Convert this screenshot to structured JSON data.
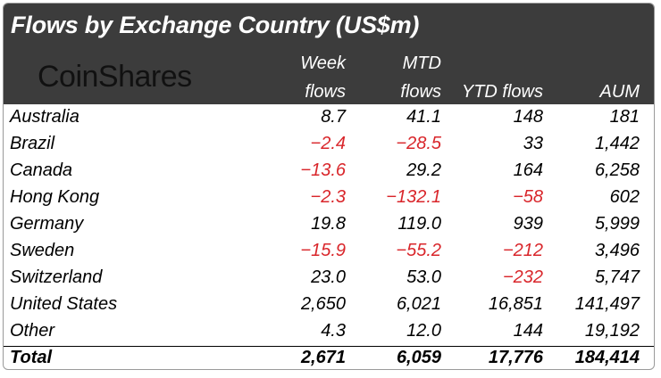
{
  "title": "Flows by Exchange Country (US$m)",
  "logo_text": "CoinShares",
  "headers": {
    "week": [
      "Week",
      "flows"
    ],
    "mtd": [
      "MTD",
      "flows"
    ],
    "ytd": "YTD flows",
    "aum": "AUM"
  },
  "rows": [
    {
      "country": "Australia",
      "week": "8.7",
      "mtd": "41.1",
      "ytd": "148",
      "aum": "181"
    },
    {
      "country": "Brazil",
      "week": "-2.4",
      "mtd": "-28.5",
      "ytd": "33",
      "aum": "1,442"
    },
    {
      "country": "Canada",
      "week": "-13.6",
      "mtd": "29.2",
      "ytd": "164",
      "aum": "6,258"
    },
    {
      "country": "Hong Kong",
      "week": "-2.3",
      "mtd": "-132.1",
      "ytd": "-58",
      "aum": "602"
    },
    {
      "country": "Germany",
      "week": "19.8",
      "mtd": "119.0",
      "ytd": "939",
      "aum": "5,999"
    },
    {
      "country": "Sweden",
      "week": "-15.9",
      "mtd": "-55.2",
      "ytd": "-212",
      "aum": "3,496"
    },
    {
      "country": "Switzerland",
      "week": "23.0",
      "mtd": "53.0",
      "ytd": "-232",
      "aum": "5,747"
    },
    {
      "country": "United States",
      "week": "2,650",
      "mtd": "6,021",
      "ytd": "16,851",
      "aum": "141,497"
    },
    {
      "country": "Other",
      "week": "4.3",
      "mtd": "12.0",
      "ytd": "144",
      "aum": "19,192"
    }
  ],
  "total": {
    "label": "Total",
    "week": "2,671",
    "mtd": "6,059",
    "ytd": "17,776",
    "aum": "184,414"
  },
  "colors": {
    "header_bg": "#3c3c3c",
    "negative": "#d9262b"
  }
}
